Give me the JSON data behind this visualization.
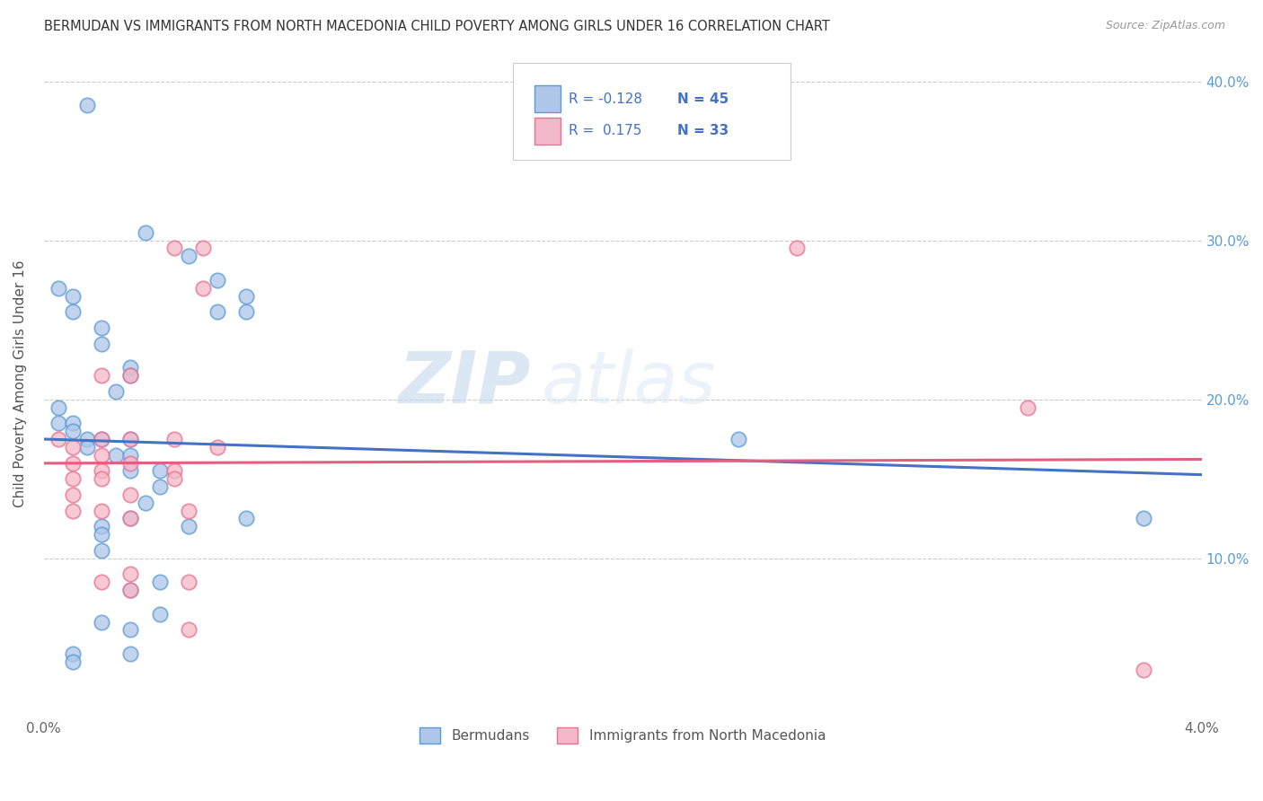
{
  "title": "BERMUDAN VS IMMIGRANTS FROM NORTH MACEDONIA CHILD POVERTY AMONG GIRLS UNDER 16 CORRELATION CHART",
  "source": "Source: ZipAtlas.com",
  "ylabel": "Child Poverty Among Girls Under 16",
  "xmin": 0.0,
  "xmax": 0.04,
  "ymin": 0.0,
  "ymax": 0.42,
  "yticks": [
    0.0,
    0.1,
    0.2,
    0.3,
    0.4
  ],
  "xticks": [
    0.0,
    0.01,
    0.02,
    0.03,
    0.04
  ],
  "xtick_labels": [
    "0.0%",
    "",
    "",
    "",
    "4.0%"
  ],
  "ytick_labels_right": [
    "",
    "10.0%",
    "20.0%",
    "30.0%",
    "40.0%"
  ],
  "legend_labels": [
    "Bermudans",
    "Immigrants from North Macedonia"
  ],
  "blue_fill": "#aec6e8",
  "pink_fill": "#f5b8c8",
  "blue_edge": "#5b9bd5",
  "pink_edge": "#e87090",
  "blue_line": "#4472c4",
  "pink_line": "#e06080",
  "r_blue": "-0.128",
  "n_blue": "45",
  "r_pink": "0.175",
  "n_pink": "33",
  "watermark_zip": "ZIP",
  "watermark_atlas": "atlas",
  "blue_dots": [
    [
      0.0015,
      0.385
    ],
    [
      0.0035,
      0.305
    ],
    [
      0.005,
      0.29
    ],
    [
      0.006,
      0.275
    ],
    [
      0.006,
      0.255
    ],
    [
      0.007,
      0.265
    ],
    [
      0.007,
      0.255
    ],
    [
      0.0005,
      0.27
    ],
    [
      0.001,
      0.265
    ],
    [
      0.001,
      0.255
    ],
    [
      0.002,
      0.245
    ],
    [
      0.002,
      0.235
    ],
    [
      0.003,
      0.22
    ],
    [
      0.003,
      0.215
    ],
    [
      0.0025,
      0.205
    ],
    [
      0.0005,
      0.195
    ],
    [
      0.0005,
      0.185
    ],
    [
      0.001,
      0.185
    ],
    [
      0.001,
      0.18
    ],
    [
      0.0015,
      0.175
    ],
    [
      0.0015,
      0.17
    ],
    [
      0.002,
      0.175
    ],
    [
      0.0025,
      0.165
    ],
    [
      0.003,
      0.175
    ],
    [
      0.003,
      0.165
    ],
    [
      0.003,
      0.155
    ],
    [
      0.004,
      0.155
    ],
    [
      0.004,
      0.145
    ],
    [
      0.0035,
      0.135
    ],
    [
      0.003,
      0.125
    ],
    [
      0.002,
      0.12
    ],
    [
      0.002,
      0.115
    ],
    [
      0.002,
      0.105
    ],
    [
      0.003,
      0.08
    ],
    [
      0.004,
      0.085
    ],
    [
      0.005,
      0.12
    ],
    [
      0.007,
      0.125
    ],
    [
      0.004,
      0.065
    ],
    [
      0.003,
      0.055
    ],
    [
      0.003,
      0.04
    ],
    [
      0.002,
      0.06
    ],
    [
      0.001,
      0.04
    ],
    [
      0.001,
      0.035
    ],
    [
      0.038,
      0.125
    ],
    [
      0.024,
      0.175
    ]
  ],
  "pink_dots": [
    [
      0.0005,
      0.175
    ],
    [
      0.001,
      0.17
    ],
    [
      0.001,
      0.16
    ],
    [
      0.001,
      0.15
    ],
    [
      0.001,
      0.14
    ],
    [
      0.001,
      0.13
    ],
    [
      0.002,
      0.215
    ],
    [
      0.002,
      0.175
    ],
    [
      0.002,
      0.165
    ],
    [
      0.002,
      0.155
    ],
    [
      0.002,
      0.15
    ],
    [
      0.002,
      0.13
    ],
    [
      0.002,
      0.085
    ],
    [
      0.003,
      0.215
    ],
    [
      0.003,
      0.175
    ],
    [
      0.003,
      0.16
    ],
    [
      0.003,
      0.14
    ],
    [
      0.003,
      0.125
    ],
    [
      0.003,
      0.09
    ],
    [
      0.003,
      0.08
    ],
    [
      0.0045,
      0.295
    ],
    [
      0.0045,
      0.175
    ],
    [
      0.0045,
      0.155
    ],
    [
      0.0045,
      0.15
    ],
    [
      0.005,
      0.13
    ],
    [
      0.005,
      0.085
    ],
    [
      0.005,
      0.055
    ],
    [
      0.0055,
      0.295
    ],
    [
      0.0055,
      0.27
    ],
    [
      0.006,
      0.17
    ],
    [
      0.026,
      0.295
    ],
    [
      0.034,
      0.195
    ],
    [
      0.038,
      0.03
    ]
  ]
}
